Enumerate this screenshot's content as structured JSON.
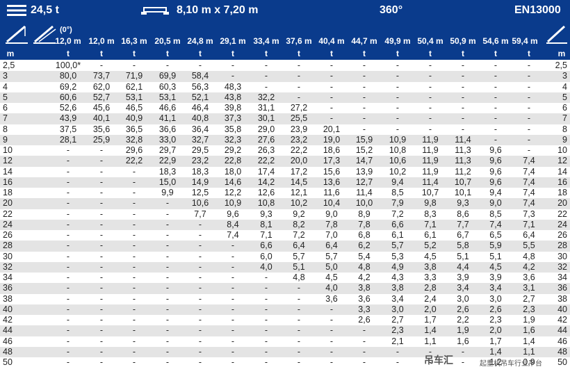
{
  "header": {
    "capacity": "24,5 t",
    "outrigger": "8,10 m x 7,20 m",
    "slew": "360°",
    "norm": "EN13000"
  },
  "boom_angle": "(0°)",
  "unit_length": "m",
  "unit_load": "t",
  "boom_lengths": [
    "12,0 m",
    "12,0 m",
    "16,3 m",
    "20,5 m",
    "24,8 m",
    "29,1 m",
    "33,4 m",
    "37,6 m",
    "40,4 m",
    "44,7 m",
    "49,9 m",
    "50,4 m",
    "50,9 m",
    "54,6 m",
    "59,4 m"
  ],
  "rows": [
    {
      "r": "2,5",
      "v": [
        "100,0*",
        "-",
        "-",
        "-",
        "-",
        "-",
        "-",
        "-",
        "-",
        "-",
        "-",
        "-",
        "-",
        "-",
        "-"
      ]
    },
    {
      "r": "3",
      "v": [
        "80,0",
        "73,7",
        "71,9",
        "69,9",
        "58,4",
        "-",
        "-",
        "-",
        "-",
        "-",
        "-",
        "-",
        "-",
        "-",
        "-"
      ]
    },
    {
      "r": "4",
      "v": [
        "69,2",
        "62,0",
        "62,1",
        "60,3",
        "56,3",
        "48,3",
        "-",
        "-",
        "-",
        "-",
        "-",
        "-",
        "-",
        "-",
        "-"
      ]
    },
    {
      "r": "5",
      "v": [
        "60,6",
        "52,7",
        "53,1",
        "53,1",
        "52,1",
        "43,8",
        "32,2",
        "-",
        "-",
        "-",
        "-",
        "-",
        "-",
        "-",
        "-"
      ]
    },
    {
      "r": "6",
      "v": [
        "52,6",
        "45,6",
        "46,5",
        "46,6",
        "46,4",
        "39,8",
        "31,1",
        "27,2",
        "-",
        "-",
        "-",
        "-",
        "-",
        "-",
        "-"
      ]
    },
    {
      "r": "7",
      "v": [
        "43,9",
        "40,1",
        "40,9",
        "41,1",
        "40,8",
        "37,3",
        "30,1",
        "25,5",
        "-",
        "-",
        "-",
        "-",
        "-",
        "-",
        "-"
      ]
    },
    {
      "r": "8",
      "v": [
        "37,5",
        "35,6",
        "36,5",
        "36,6",
        "36,4",
        "35,8",
        "29,0",
        "23,9",
        "20,1",
        "-",
        "-",
        "-",
        "-",
        "-",
        "-"
      ]
    },
    {
      "r": "9",
      "v": [
        "28,1",
        "25,9",
        "32,8",
        "33,0",
        "32,7",
        "32,3",
        "27,6",
        "23,2",
        "19,0",
        "15,9",
        "10,9",
        "11,9",
        "11,4",
        "-",
        "-"
      ]
    },
    {
      "r": "10",
      "v": [
        "-",
        "-",
        "29,6",
        "29,7",
        "29,5",
        "29,2",
        "26,3",
        "22,2",
        "18,6",
        "15,2",
        "10,8",
        "11,9",
        "11,3",
        "9,6",
        "-"
      ]
    },
    {
      "r": "12",
      "v": [
        "-",
        "-",
        "22,2",
        "22,9",
        "23,2",
        "22,8",
        "22,2",
        "20,0",
        "17,3",
        "14,7",
        "10,6",
        "11,9",
        "11,3",
        "9,6",
        "7,4"
      ]
    },
    {
      "r": "14",
      "v": [
        "-",
        "-",
        "-",
        "18,3",
        "18,3",
        "18,0",
        "17,4",
        "17,2",
        "15,6",
        "13,9",
        "10,2",
        "11,9",
        "11,2",
        "9,6",
        "7,4"
      ]
    },
    {
      "r": "16",
      "v": [
        "-",
        "-",
        "-",
        "15,0",
        "14,9",
        "14,6",
        "14,2",
        "14,5",
        "13,6",
        "12,7",
        "9,4",
        "11,4",
        "10,7",
        "9,6",
        "7,4"
      ]
    },
    {
      "r": "18",
      "v": [
        "-",
        "-",
        "-",
        "9,9",
        "12,5",
        "12,2",
        "12,6",
        "12,1",
        "11,6",
        "11,4",
        "8,5",
        "10,7",
        "10,1",
        "9,4",
        "7,4"
      ]
    },
    {
      "r": "20",
      "v": [
        "-",
        "-",
        "-",
        "-",
        "10,6",
        "10,9",
        "10,8",
        "10,2",
        "10,4",
        "10,0",
        "7,9",
        "9,8",
        "9,3",
        "9,0",
        "7,4"
      ]
    },
    {
      "r": "22",
      "v": [
        "-",
        "-",
        "-",
        "-",
        "7,7",
        "9,6",
        "9,3",
        "9,2",
        "9,0",
        "8,9",
        "7,2",
        "8,3",
        "8,6",
        "8,5",
        "7,3"
      ]
    },
    {
      "r": "24",
      "v": [
        "-",
        "-",
        "-",
        "-",
        "-",
        "8,4",
        "8,1",
        "8,2",
        "7,8",
        "7,8",
        "6,6",
        "7,1",
        "7,7",
        "7,4",
        "7,1"
      ]
    },
    {
      "r": "26",
      "v": [
        "-",
        "-",
        "-",
        "-",
        "-",
        "7,4",
        "7,1",
        "7,2",
        "7,0",
        "6,8",
        "6,1",
        "6,1",
        "6,7",
        "6,5",
        "6,4"
      ]
    },
    {
      "r": "28",
      "v": [
        "-",
        "-",
        "-",
        "-",
        "-",
        "-",
        "6,6",
        "6,4",
        "6,4",
        "6,2",
        "5,7",
        "5,2",
        "5,8",
        "5,9",
        "5,5"
      ]
    },
    {
      "r": "30",
      "v": [
        "-",
        "-",
        "-",
        "-",
        "-",
        "-",
        "6,0",
        "5,7",
        "5,7",
        "5,4",
        "5,3",
        "4,5",
        "5,1",
        "5,1",
        "4,8"
      ]
    },
    {
      "r": "32",
      "v": [
        "-",
        "-",
        "-",
        "-",
        "-",
        "-",
        "4,0",
        "5,1",
        "5,0",
        "4,8",
        "4,9",
        "3,8",
        "4,4",
        "4,5",
        "4,2"
      ]
    },
    {
      "r": "34",
      "v": [
        "-",
        "-",
        "-",
        "-",
        "-",
        "-",
        "-",
        "4,8",
        "4,5",
        "4,2",
        "4,3",
        "3,3",
        "3,9",
        "3,9",
        "3,6"
      ]
    },
    {
      "r": "36",
      "v": [
        "-",
        "-",
        "-",
        "-",
        "-",
        "-",
        "-",
        "-",
        "4,0",
        "3,8",
        "3,8",
        "2,8",
        "3,4",
        "3,4",
        "3,1"
      ]
    },
    {
      "r": "38",
      "v": [
        "-",
        "-",
        "-",
        "-",
        "-",
        "-",
        "-",
        "-",
        "3,6",
        "3,6",
        "3,4",
        "2,4",
        "3,0",
        "3,0",
        "2,7"
      ]
    },
    {
      "r": "40",
      "v": [
        "-",
        "-",
        "-",
        "-",
        "-",
        "-",
        "-",
        "-",
        "-",
        "3,3",
        "3,0",
        "2,0",
        "2,6",
        "2,6",
        "2,3"
      ]
    },
    {
      "r": "42",
      "v": [
        "-",
        "-",
        "-",
        "-",
        "-",
        "-",
        "-",
        "-",
        "-",
        "2,6",
        "2,7",
        "1,7",
        "2,2",
        "2,3",
        "1,9"
      ]
    },
    {
      "r": "44",
      "v": [
        "-",
        "-",
        "-",
        "-",
        "-",
        "-",
        "-",
        "-",
        "-",
        "-",
        "2,3",
        "1,4",
        "1,9",
        "2,0",
        "1,6"
      ]
    },
    {
      "r": "46",
      "v": [
        "-",
        "-",
        "-",
        "-",
        "-",
        "-",
        "-",
        "-",
        "-",
        "-",
        "2,1",
        "1,1",
        "1,6",
        "1,7",
        "1,4"
      ]
    },
    {
      "r": "48",
      "v": [
        "-",
        "-",
        "-",
        "-",
        "-",
        "-",
        "-",
        "-",
        "-",
        "-",
        "-",
        "-",
        "-",
        "1,4",
        "1,1"
      ]
    },
    {
      "r": "50",
      "v": [
        "-",
        "-",
        "-",
        "-",
        "-",
        "-",
        "-",
        "-",
        "-",
        "-",
        "-",
        "-",
        "-",
        "1,2",
        "0,9"
      ]
    }
  ],
  "watermark": {
    "brand": "吊车汇",
    "slogan": "起重机吊车行业平台"
  },
  "colors": {
    "header_bg": "#0a3b8c",
    "row_alt": "#e4e4e4"
  },
  "icons": [
    "hamburger-lines-icon",
    "outrigger-base-icon",
    "boom-icon",
    "telescopic-boom-icon"
  ]
}
